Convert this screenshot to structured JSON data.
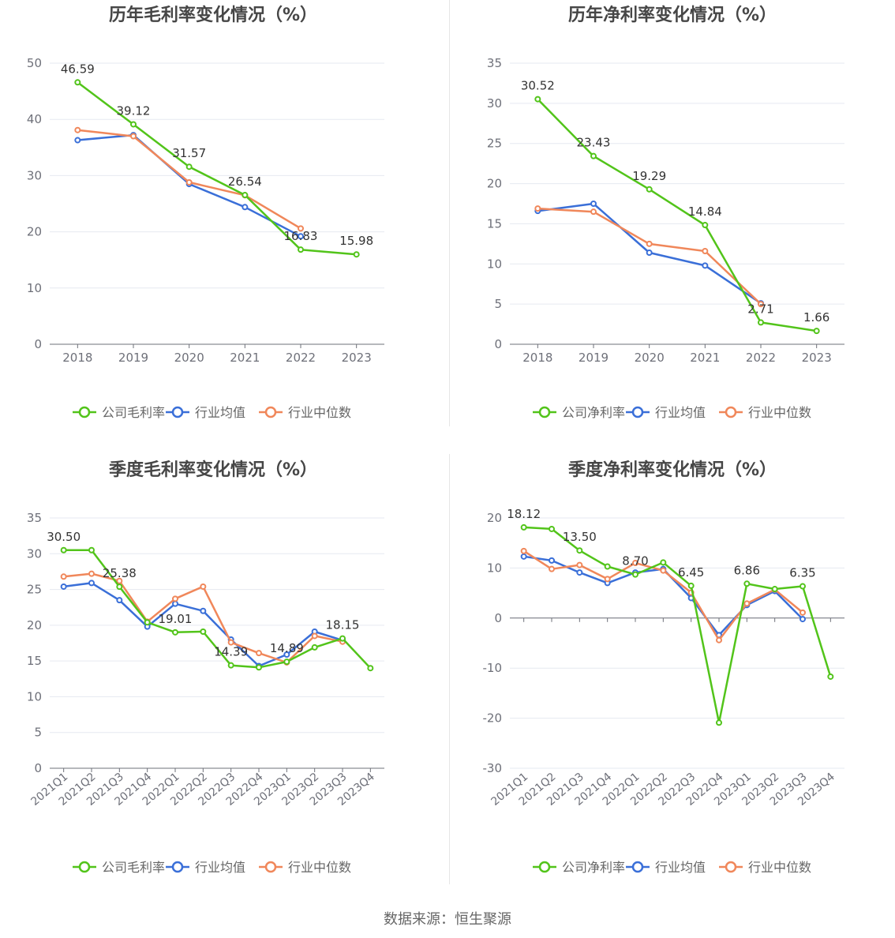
{
  "footer": {
    "source": "数据来源：恒生聚源"
  },
  "colors": {
    "company": "#52c41a",
    "avg": "#3a6fd8",
    "median": "#f0875a",
    "grid": "#e6e9f0",
    "axis": "#6e7079",
    "text": "#6e7079",
    "title": "#464646"
  },
  "chart_data": [
    {
      "id": "annual-gross",
      "type": "line",
      "title": "历年毛利率变化情况（%）",
      "categories": [
        "2018",
        "2019",
        "2020",
        "2021",
        "2022",
        "2023"
      ],
      "ylim": [
        0,
        50
      ],
      "yticks": [
        0,
        10,
        20,
        30,
        40,
        50
      ],
      "grid": true,
      "legend": "bottom-center",
      "label_series": 0,
      "series": [
        {
          "name": "公司毛利率",
          "values": [
            46.59,
            39.12,
            31.57,
            26.54,
            16.83,
            15.98
          ],
          "labels": [
            "46.59",
            "39.12",
            "31.57",
            "26.54",
            "16.83",
            "15.98"
          ]
        },
        {
          "name": "行业均值",
          "values": [
            36.3,
            37.2,
            28.5,
            24.4,
            19.2,
            null
          ]
        },
        {
          "name": "行业中位数",
          "values": [
            38.1,
            37.0,
            28.8,
            26.5,
            20.6,
            null
          ]
        }
      ]
    },
    {
      "id": "annual-net",
      "type": "line",
      "title": "历年净利率变化情况（%）",
      "categories": [
        "2018",
        "2019",
        "2020",
        "2021",
        "2022",
        "2023"
      ],
      "ylim": [
        0,
        35
      ],
      "yticks": [
        0,
        5,
        10,
        15,
        20,
        25,
        30,
        35
      ],
      "grid": true,
      "legend": "bottom-center",
      "label_series": 0,
      "series": [
        {
          "name": "公司净利率",
          "values": [
            30.52,
            23.43,
            19.29,
            14.84,
            2.71,
            1.66
          ],
          "labels": [
            "30.52",
            "23.43",
            "19.29",
            "14.84",
            "2.71",
            "1.66"
          ]
        },
        {
          "name": "行业均值",
          "values": [
            16.6,
            17.5,
            11.4,
            9.8,
            5.1,
            null
          ]
        },
        {
          "name": "行业中位数",
          "values": [
            16.9,
            16.5,
            12.5,
            11.6,
            5.0,
            null
          ]
        }
      ]
    },
    {
      "id": "quarterly-gross",
      "type": "line",
      "title": "季度毛利率变化情况（%）",
      "categories": [
        "2021Q1",
        "2021Q2",
        "2021Q3",
        "2021Q4",
        "2022Q1",
        "2022Q2",
        "2022Q3",
        "2022Q4",
        "2023Q1",
        "2023Q2",
        "2023Q3",
        "2023Q4"
      ],
      "ylim": [
        0,
        35
      ],
      "yticks": [
        0,
        5,
        10,
        15,
        20,
        25,
        30,
        35
      ],
      "grid": true,
      "legend": "bottom-center",
      "label_series": 0,
      "series": [
        {
          "name": "公司毛利率",
          "values": [
            30.5,
            30.5,
            25.38,
            20.4,
            19.01,
            19.1,
            14.39,
            14.1,
            14.89,
            16.9,
            18.15,
            14.0
          ],
          "labels": [
            "30.50",
            null,
            "25.38",
            null,
            "19.01",
            null,
            "14.39",
            null,
            "14.89",
            null,
            "18.15",
            null
          ]
        },
        {
          "name": "行业均值",
          "values": [
            25.4,
            25.9,
            23.5,
            19.8,
            23.0,
            22.0,
            18.0,
            14.3,
            15.9,
            19.1,
            17.9,
            null
          ]
        },
        {
          "name": "行业中位数",
          "values": [
            26.8,
            27.2,
            26.2,
            20.5,
            23.7,
            25.4,
            17.6,
            16.1,
            14.8,
            18.5,
            17.7,
            null
          ]
        }
      ]
    },
    {
      "id": "quarterly-net",
      "type": "line",
      "title": "季度净利率变化情况（%）",
      "categories": [
        "2021Q1",
        "2021Q2",
        "2021Q3",
        "2021Q4",
        "2022Q1",
        "2022Q2",
        "2022Q3",
        "2022Q4",
        "2023Q1",
        "2023Q2",
        "2023Q3",
        "2023Q4"
      ],
      "ylim": [
        -30,
        20
      ],
      "yticks": [
        -30,
        -20,
        -10,
        0,
        10,
        20
      ],
      "grid": true,
      "legend": "bottom-center",
      "label_series": 0,
      "series": [
        {
          "name": "公司净利率",
          "values": [
            18.12,
            17.8,
            13.5,
            10.3,
            8.7,
            11.1,
            6.45,
            -20.9,
            6.86,
            5.8,
            6.35,
            -11.7
          ],
          "labels": [
            "18.12",
            null,
            "13.50",
            null,
            "8.70",
            null,
            "6.45",
            null,
            "6.86",
            null,
            "6.35",
            null
          ]
        },
        {
          "name": "行业均值",
          "values": [
            12.3,
            11.5,
            9.1,
            7.0,
            9.1,
            9.8,
            4.0,
            -3.4,
            2.6,
            5.4,
            -0.2,
            null
          ]
        },
        {
          "name": "行业中位数",
          "values": [
            13.4,
            9.8,
            10.6,
            7.8,
            11.0,
            9.5,
            5.1,
            -4.4,
            2.9,
            5.7,
            1.1,
            null
          ]
        }
      ]
    }
  ]
}
